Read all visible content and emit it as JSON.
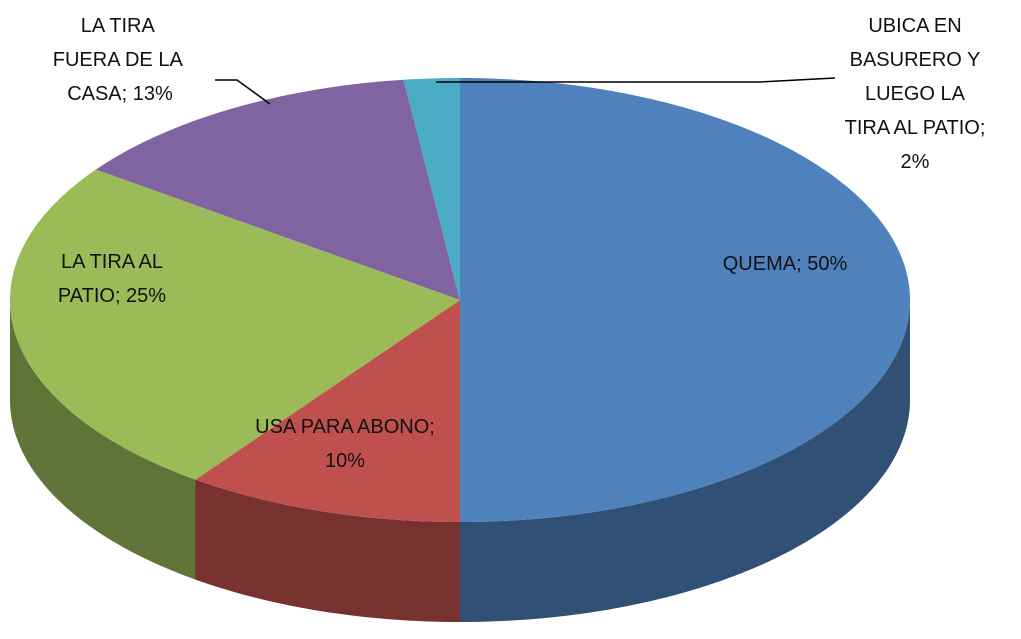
{
  "chart_data": {
    "type": "pie3d",
    "values": [
      50,
      10,
      25,
      13,
      2
    ],
    "value_labels": [
      "QUEMA; 50%",
      "USA PARA ABONO; 10%",
      "LA TIRA AL PATIO; 25%",
      "LA TIRA  FUERA DE LA  CASA; 13%",
      "UBICA EN BASURERO Y LUEGO LA TIRA AL PATIO; 2%"
    ],
    "colors": [
      "#4f81bd",
      "#c0504d",
      "#9bbb59",
      "#8064a2",
      "#4bacc6"
    ]
  }
}
